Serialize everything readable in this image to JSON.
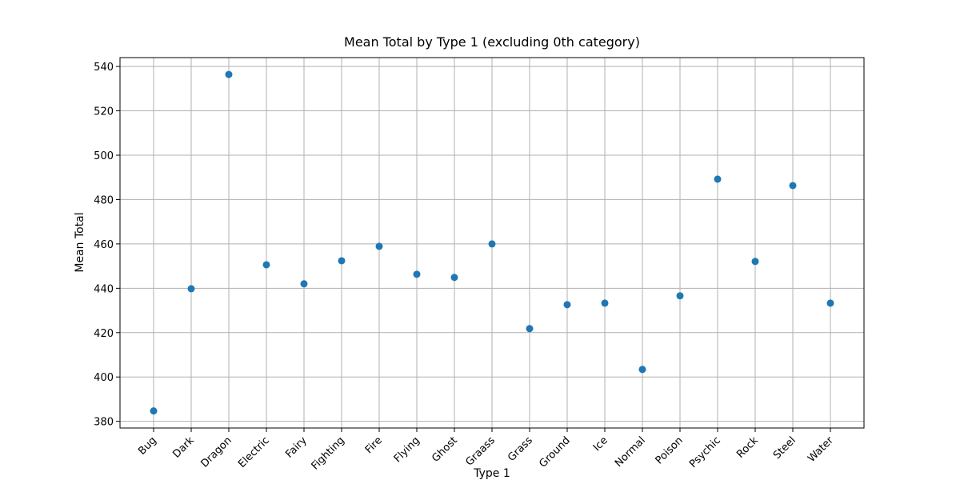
{
  "chart_data": {
    "type": "scatter",
    "title": "Mean Total by Type 1 (excluding 0th category)",
    "xlabel": "Type 1",
    "ylabel": "Mean Total",
    "categories": [
      "Bug",
      "Dark",
      "Dragon",
      "Electric",
      "Fairy",
      "Fighting",
      "Fire",
      "Flying",
      "Ghost",
      "Graass",
      "Grass",
      "Ground",
      "Ice",
      "Normal",
      "Poison",
      "Psychic",
      "Rock",
      "Steel",
      "Water"
    ],
    "values": [
      384.7,
      439.8,
      536.4,
      450.6,
      442,
      452.4,
      458.9,
      446.3,
      444.9,
      460,
      421.8,
      432.6,
      433.3,
      403.4,
      436.6,
      489.2,
      452.1,
      486.3,
      433.3
    ],
    "color": "#1f77b4",
    "ylim": [
      377,
      544
    ],
    "yticks": [
      380,
      400,
      420,
      440,
      460,
      480,
      500,
      520,
      540
    ],
    "grid": true
  }
}
